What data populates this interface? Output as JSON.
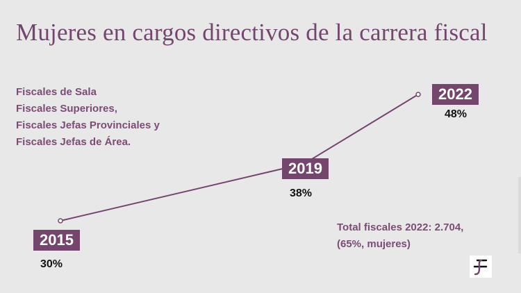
{
  "title": "Mujeres en cargos directivos de la carrera fiscal",
  "categories_text": [
    "Fiscales de Sala",
    "Fiscales Superiores,",
    "Fiscales Jefas Provinciales y",
    "Fiscales Jefas de Área."
  ],
  "note": {
    "line1": "Total fiscales 2022: 2.704,",
    "line2": "(65%, mujeres)"
  },
  "logo": {
    "name": "fiscalia-logo"
  },
  "colors": {
    "accent": "#74466e",
    "text_accent": "#7b4c75",
    "background": "#e9e8e8"
  },
  "chart_data": {
    "type": "line",
    "x": [
      "2015",
      "2019",
      "2022"
    ],
    "values": [
      30,
      38,
      48
    ],
    "labels": [
      "30%",
      "38%",
      "48%"
    ],
    "unit": "%",
    "ylim": [
      25,
      50
    ],
    "grid": false,
    "legend": "none"
  }
}
